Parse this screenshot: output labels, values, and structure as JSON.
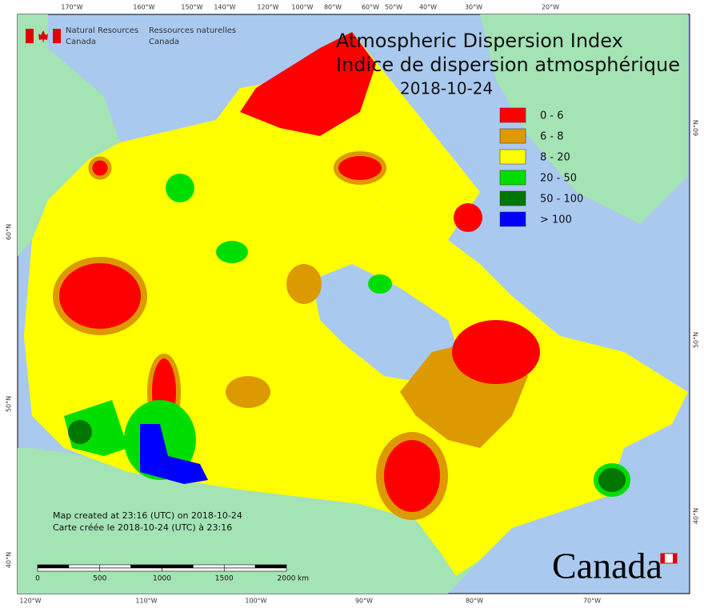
{
  "header": {
    "org_en": [
      "Natural Resources",
      "Canada"
    ],
    "org_fr": [
      "Ressources naturelles",
      "Canada"
    ]
  },
  "title": [
    "Atmospheric Dispersion Index",
    "Indice de dispersion atmosphérique",
    "2018-10-24"
  ],
  "legend": [
    {
      "label": "0 - 6",
      "color": "#ff0000"
    },
    {
      "label": "6 - 8",
      "color": "#dd9900"
    },
    {
      "label": "8 - 20",
      "color": "#ffff00"
    },
    {
      "label": "20 - 50",
      "color": "#00dd00"
    },
    {
      "label": "50 - 100",
      "color": "#007700"
    },
    {
      "label": "> 100",
      "color": "#0000ff"
    }
  ],
  "footer": [
    "Map created at 23:16 (UTC) on 2018-10-24",
    "Carte créée le 2018-10-24 (UTC) à 23:16"
  ],
  "scale": {
    "labels": [
      0,
      500,
      1000,
      1500,
      2000
    ],
    "unit": "km"
  },
  "graticule": {
    "top": [
      "170°W",
      "160°W",
      "150°W",
      "140°W",
      "120°W",
      "100°W",
      "80°W",
      "60°W",
      "50°W",
      "40°W",
      "30°W",
      "20°W"
    ],
    "bottom": [
      "120°W",
      "110°W",
      "100°W",
      "90°W",
      "80°W",
      "70°W"
    ],
    "left": [
      "60°N",
      "50°N",
      "40°N"
    ],
    "right": [
      "60°N",
      "50°N",
      "40°N"
    ]
  },
  "wordmark": "Canada"
}
